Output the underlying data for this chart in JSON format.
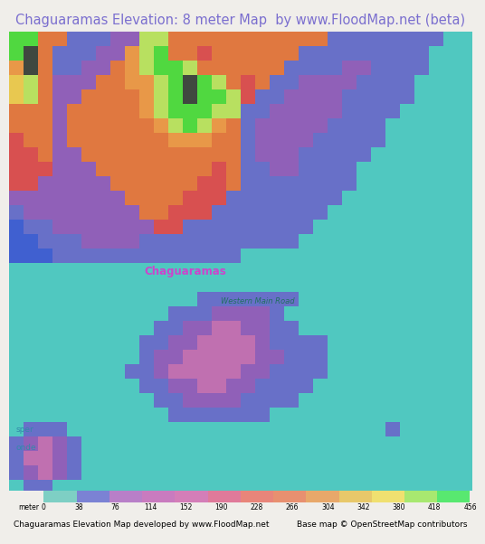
{
  "title": "Chaguaramas Elevation: 8 meter Map  by www.FloodMap.net (beta)",
  "title_color": "#7b6fcf",
  "title_bg": "#e8e6e0",
  "title_fontsize": 10.5,
  "footer_left": "Chaguaramas Elevation Map developed by www.FloodMap.net",
  "footer_right": "Base map © OpenStreetMap contributors",
  "footer_fontsize": 6.5,
  "legend_label": "meter",
  "legend_ticks": [
    0,
    38,
    76,
    114,
    152,
    190,
    228,
    266,
    304,
    342,
    380,
    418,
    456
  ],
  "legend_colors": [
    "#7ecfc4",
    "#7b82d4",
    "#b87fc8",
    "#c97bbf",
    "#d47eb8",
    "#e07a9a",
    "#e8857a",
    "#e89070",
    "#e8a86a",
    "#e8c86a",
    "#f0e070",
    "#a8e870",
    "#58e870"
  ],
  "fig_width": 5.12,
  "fig_height": 5.82,
  "sea_color": "#52c8c0",
  "land_outline_color": "#a0d8d0",
  "road_color": "#40a090",
  "label_chaguaramas_color": "#cc55cc",
  "label_road_color": "#408080",
  "label_sper_color": "#5599aa",
  "legend_bar_bg": "#f0eeea",
  "footer_bg": "#f0eeea"
}
